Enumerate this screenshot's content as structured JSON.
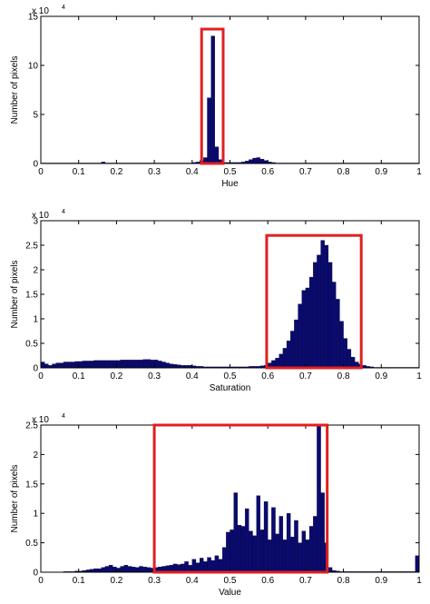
{
  "chart_data": [
    {
      "type": "bar",
      "title": "",
      "xlabel": "Hue",
      "ylabel": "Number of pixels",
      "y_multiplier": "x 10",
      "y_exponent": "4",
      "xlim": [
        0,
        1
      ],
      "ylim": [
        0,
        15
      ],
      "x_ticks": [
        "0",
        "0.1",
        "0.2",
        "0.3",
        "0.4",
        "0.5",
        "0.6",
        "0.7",
        "0.8",
        "0.9",
        "1"
      ],
      "y_ticks": [
        "0",
        "5",
        "10",
        "15"
      ],
      "bar_color": "#0a0a6e",
      "highlight_color": "#e02020",
      "highlight_range": {
        "x": [
          0.425,
          0.482
        ],
        "y": [
          0,
          13.7
        ]
      },
      "grid": false,
      "bins": [
        0.005,
        0.015,
        0.025,
        0.035,
        0.045,
        0.055,
        0.065,
        0.075,
        0.085,
        0.095,
        0.105,
        0.115,
        0.125,
        0.135,
        0.145,
        0.155,
        0.165,
        0.175,
        0.185,
        0.195,
        0.205,
        0.215,
        0.225,
        0.235,
        0.245,
        0.255,
        0.265,
        0.275,
        0.285,
        0.295,
        0.305,
        0.315,
        0.325,
        0.335,
        0.345,
        0.355,
        0.365,
        0.375,
        0.385,
        0.395,
        0.405,
        0.415,
        0.425,
        0.435,
        0.445,
        0.455,
        0.465,
        0.475,
        0.485,
        0.495,
        0.505,
        0.515,
        0.525,
        0.535,
        0.545,
        0.555,
        0.565,
        0.575,
        0.585,
        0.595,
        0.605,
        0.615,
        0.625,
        0.635,
        0.645,
        0.655,
        0.665,
        0.675,
        0.685,
        0.695,
        0.705,
        0.715,
        0.725,
        0.735,
        0.745,
        0.755,
        0.765,
        0.775,
        0.785,
        0.795,
        0.805,
        0.815,
        0.825,
        0.835,
        0.845,
        0.855,
        0.865,
        0.875,
        0.885,
        0.895,
        0.905,
        0.915,
        0.925,
        0.935,
        0.945,
        0.955,
        0.965,
        0.975,
        0.985,
        0.995
      ],
      "values": [
        0.05,
        0.05,
        0.05,
        0.05,
        0.05,
        0.05,
        0.05,
        0.05,
        0.05,
        0.05,
        0.05,
        0.05,
        0.05,
        0.05,
        0.05,
        0.05,
        0.15,
        0.05,
        0.05,
        0.05,
        0.05,
        0.05,
        0.05,
        0.05,
        0.05,
        0.05,
        0.05,
        0.05,
        0.05,
        0.05,
        0.05,
        0.05,
        0.05,
        0.05,
        0.05,
        0.05,
        0.05,
        0.05,
        0.05,
        0.05,
        0.1,
        0.15,
        0.3,
        0.6,
        6.7,
        13.0,
        1.7,
        0.4,
        0.1,
        0.1,
        0.1,
        0.1,
        0.1,
        0.15,
        0.25,
        0.4,
        0.55,
        0.6,
        0.45,
        0.3,
        0.15,
        0.1,
        0.05,
        0.05,
        0.05,
        0.05,
        0.05,
        0.05,
        0.05,
        0.05,
        0.05,
        0.05,
        0.05,
        0.05,
        0.05,
        0.05,
        0.05,
        0.05,
        0.05,
        0.05,
        0.05,
        0.05,
        0.05,
        0.05,
        0.05,
        0.05,
        0.05,
        0.05,
        0.05,
        0.05,
        0.05,
        0.05,
        0.05,
        0.05,
        0.05,
        0.05,
        0.05,
        0.05,
        0.05,
        0.05
      ]
    },
    {
      "type": "bar",
      "title": "",
      "xlabel": "Saturation",
      "ylabel": "Number of pixels",
      "y_multiplier": "x 10",
      "y_exponent": "4",
      "xlim": [
        0,
        1
      ],
      "ylim": [
        0,
        3
      ],
      "x_ticks": [
        "0",
        "0.1",
        "0.2",
        "0.3",
        "0.4",
        "0.5",
        "0.6",
        "0.7",
        "0.8",
        "0.9",
        "1"
      ],
      "y_ticks": [
        "0",
        "0.5",
        "1",
        "1.5",
        "2",
        "2.5",
        "3"
      ],
      "bar_color": "#0a0a6e",
      "highlight_color": "#e02020",
      "highlight_range": {
        "x": [
          0.597,
          0.847
        ],
        "y": [
          0,
          2.7
        ]
      },
      "grid": false,
      "bins": [
        0.005,
        0.015,
        0.025,
        0.035,
        0.045,
        0.055,
        0.065,
        0.075,
        0.085,
        0.095,
        0.105,
        0.115,
        0.125,
        0.135,
        0.145,
        0.155,
        0.165,
        0.175,
        0.185,
        0.195,
        0.205,
        0.215,
        0.225,
        0.235,
        0.245,
        0.255,
        0.265,
        0.275,
        0.285,
        0.295,
        0.305,
        0.315,
        0.325,
        0.335,
        0.345,
        0.355,
        0.365,
        0.375,
        0.385,
        0.395,
        0.405,
        0.415,
        0.425,
        0.435,
        0.445,
        0.455,
        0.465,
        0.475,
        0.485,
        0.495,
        0.505,
        0.515,
        0.525,
        0.535,
        0.545,
        0.555,
        0.565,
        0.575,
        0.585,
        0.595,
        0.605,
        0.615,
        0.625,
        0.635,
        0.645,
        0.655,
        0.665,
        0.675,
        0.685,
        0.695,
        0.705,
        0.715,
        0.725,
        0.735,
        0.745,
        0.755,
        0.765,
        0.775,
        0.785,
        0.795,
        0.805,
        0.815,
        0.825,
        0.835,
        0.845,
        0.855,
        0.865,
        0.875,
        0.885,
        0.895,
        0.905,
        0.915,
        0.925,
        0.935,
        0.945,
        0.955,
        0.965,
        0.975,
        0.985,
        0.995
      ],
      "values": [
        0.12,
        0.08,
        0.05,
        0.08,
        0.1,
        0.1,
        0.12,
        0.12,
        0.12,
        0.13,
        0.13,
        0.14,
        0.14,
        0.14,
        0.15,
        0.15,
        0.15,
        0.15,
        0.15,
        0.15,
        0.15,
        0.16,
        0.16,
        0.16,
        0.16,
        0.16,
        0.16,
        0.17,
        0.17,
        0.16,
        0.16,
        0.14,
        0.12,
        0.1,
        0.08,
        0.07,
        0.06,
        0.05,
        0.05,
        0.05,
        0.04,
        0.03,
        0.03,
        0.02,
        0.02,
        0.02,
        0.02,
        0.02,
        0.02,
        0.02,
        0.02,
        0.02,
        0.02,
        0.02,
        0.02,
        0.03,
        0.03,
        0.03,
        0.04,
        0.05,
        0.1,
        0.15,
        0.2,
        0.28,
        0.4,
        0.55,
        0.75,
        0.98,
        1.3,
        1.58,
        1.63,
        1.85,
        2.15,
        2.3,
        2.6,
        2.5,
        2.15,
        1.75,
        1.4,
        0.95,
        0.6,
        0.38,
        0.22,
        0.12,
        0.08,
        0.05,
        0.03,
        0.02,
        0.01,
        0.01,
        0.01,
        0.01,
        0.01,
        0.01,
        0.01,
        0.01,
        0.01,
        0.01,
        0.01,
        0.01
      ]
    },
    {
      "type": "bar",
      "title": "",
      "xlabel": "Value",
      "ylabel": "Number of pixels",
      "y_multiplier": "x 10",
      "y_exponent": "4",
      "xlim": [
        0,
        1
      ],
      "ylim": [
        0,
        2.5
      ],
      "x_ticks": [
        "0",
        "0.1",
        "0.2",
        "0.3",
        "0.4",
        "0.5",
        "0.6",
        "0.7",
        "0.8",
        "0.9",
        "1"
      ],
      "y_ticks": [
        "0",
        "0.5",
        "1",
        "1.5",
        "2",
        "2.5"
      ],
      "bar_color": "#0a0a6e",
      "highlight_color": "#e02020",
      "highlight_range": {
        "x": [
          0.3,
          0.757
        ],
        "y": [
          0,
          2.5
        ]
      },
      "grid": false,
      "bins": [
        0.005,
        0.015,
        0.025,
        0.035,
        0.045,
        0.055,
        0.065,
        0.075,
        0.085,
        0.095,
        0.105,
        0.115,
        0.125,
        0.135,
        0.145,
        0.155,
        0.165,
        0.175,
        0.185,
        0.195,
        0.205,
        0.215,
        0.225,
        0.235,
        0.245,
        0.255,
        0.265,
        0.275,
        0.285,
        0.295,
        0.305,
        0.315,
        0.325,
        0.335,
        0.345,
        0.355,
        0.365,
        0.375,
        0.385,
        0.395,
        0.405,
        0.415,
        0.425,
        0.435,
        0.445,
        0.455,
        0.465,
        0.475,
        0.485,
        0.495,
        0.505,
        0.515,
        0.525,
        0.535,
        0.545,
        0.555,
        0.565,
        0.575,
        0.585,
        0.595,
        0.605,
        0.615,
        0.625,
        0.635,
        0.645,
        0.655,
        0.665,
        0.675,
        0.685,
        0.695,
        0.705,
        0.715,
        0.725,
        0.735,
        0.745,
        0.755,
        0.765,
        0.775,
        0.785,
        0.795,
        0.805,
        0.815,
        0.825,
        0.835,
        0.845,
        0.855,
        0.865,
        0.875,
        0.885,
        0.895,
        0.905,
        0.915,
        0.925,
        0.935,
        0.945,
        0.955,
        0.965,
        0.975,
        0.985,
        0.995
      ],
      "values": [
        0,
        0,
        0,
        0,
        0,
        0,
        0.01,
        0.01,
        0.01,
        0.02,
        0.02,
        0.03,
        0.04,
        0.05,
        0.06,
        0.06,
        0.08,
        0.1,
        0.12,
        0.09,
        0.07,
        0.1,
        0.12,
        0.1,
        0.09,
        0.08,
        0.1,
        0.09,
        0.08,
        0.07,
        0.08,
        0.09,
        0.1,
        0.11,
        0.12,
        0.14,
        0.13,
        0.14,
        0.18,
        0.12,
        0.22,
        0.16,
        0.24,
        0.18,
        0.25,
        0.2,
        0.28,
        0.22,
        0.42,
        0.68,
        0.72,
        1.35,
        0.8,
        0.78,
        1.08,
        0.7,
        0.62,
        1.3,
        0.72,
        1.2,
        0.55,
        1.1,
        0.65,
        0.95,
        0.55,
        1.0,
        0.6,
        0.88,
        0.5,
        0.7,
        0.55,
        0.78,
        0.95,
        2.48,
        1.35,
        0.5,
        0.08,
        0.03,
        0.02,
        0.01,
        0.01,
        0.01,
        0.01,
        0.01,
        0.01,
        0.01,
        0.01,
        0.01,
        0.01,
        0.01,
        0.01,
        0.01,
        0.01,
        0.01,
        0.01,
        0.01,
        0.01,
        0.01,
        0.01,
        0.28
      ]
    }
  ]
}
